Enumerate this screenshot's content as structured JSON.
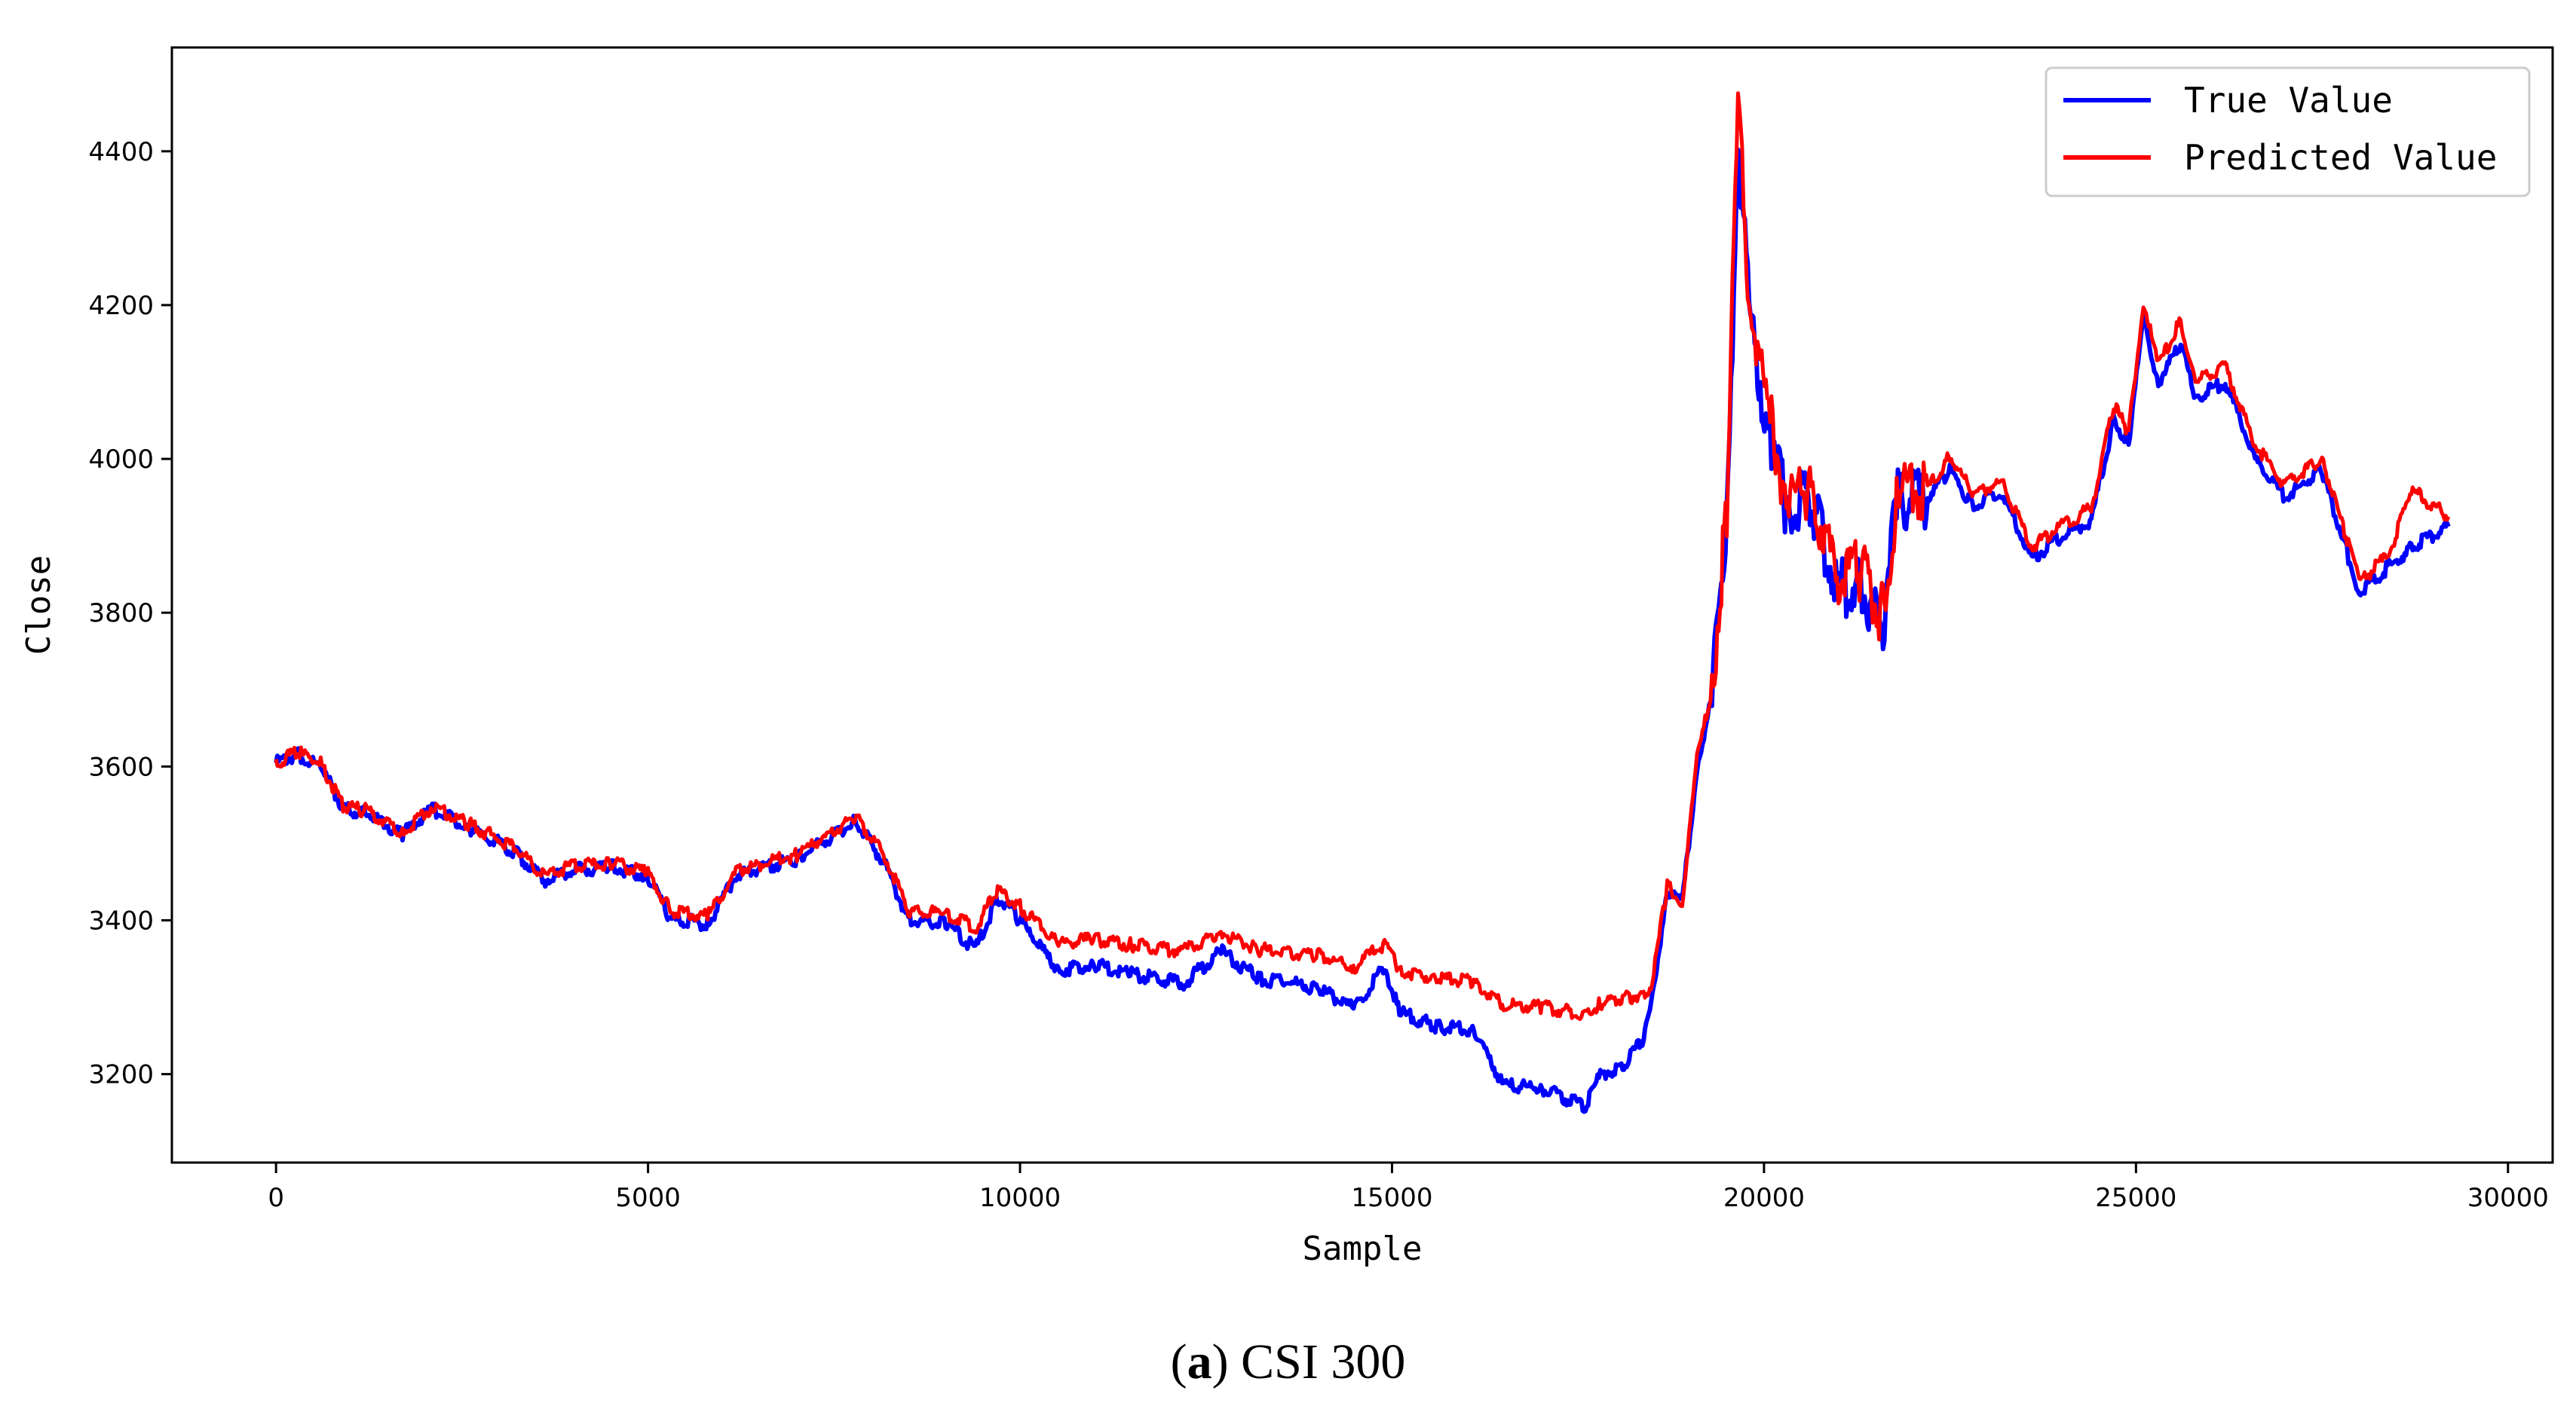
{
  "chart_data": {
    "type": "line",
    "xlabel": "Sample",
    "ylabel": "Close",
    "xlim": [
      -1400,
      30600
    ],
    "ylim": [
      3085,
      4535
    ],
    "x_ticks": [
      0,
      5000,
      10000,
      15000,
      20000,
      25000,
      30000
    ],
    "y_ticks": [
      3200,
      3400,
      3600,
      3800,
      4000,
      4200,
      4400
    ],
    "legend_position": "top-right",
    "grid": false,
    "colors": {
      "true_value": "#0000ff",
      "predicted_value": "#ff0000"
    },
    "series": [
      {
        "name": "True Value",
        "color": "#0000ff",
        "points": [
          [
            0,
            3605
          ],
          [
            300,
            3615
          ],
          [
            600,
            3600
          ],
          [
            900,
            3545
          ],
          [
            1200,
            3540
          ],
          [
            1700,
            3512
          ],
          [
            2100,
            3545
          ],
          [
            2600,
            3520
          ],
          [
            3200,
            3490
          ],
          [
            3600,
            3452
          ],
          [
            4000,
            3465
          ],
          [
            4500,
            3470
          ],
          [
            5000,
            3458
          ],
          [
            5300,
            3402
          ],
          [
            5800,
            3395
          ],
          [
            6200,
            3460
          ],
          [
            7000,
            3480
          ],
          [
            7800,
            3530
          ],
          [
            8200,
            3470
          ],
          [
            8500,
            3400
          ],
          [
            9000,
            3398
          ],
          [
            9400,
            3362
          ],
          [
            9700,
            3430
          ],
          [
            10000,
            3400
          ],
          [
            10500,
            3335
          ],
          [
            11000,
            3342
          ],
          [
            11500,
            3330
          ],
          [
            12200,
            3318
          ],
          [
            12700,
            3360
          ],
          [
            13200,
            3325
          ],
          [
            14000,
            3312
          ],
          [
            14500,
            3285
          ],
          [
            14900,
            3340
          ],
          [
            15100,
            3280
          ],
          [
            15600,
            3262
          ],
          [
            16100,
            3258
          ],
          [
            16500,
            3185
          ],
          [
            17000,
            3182
          ],
          [
            17600,
            3158
          ],
          [
            17800,
            3200
          ],
          [
            18100,
            3210
          ],
          [
            18400,
            3250
          ],
          [
            18500,
            3300
          ],
          [
            18700,
            3440
          ],
          [
            18900,
            3420
          ],
          [
            19100,
            3600
          ],
          [
            19300,
            3690
          ],
          [
            19500,
            3920
          ],
          [
            19650,
            4420
          ],
          [
            19800,
            4200
          ],
          [
            19950,
            4100
          ],
          [
            20100,
            4020
          ],
          [
            20300,
            3935
          ],
          [
            20600,
            3950
          ],
          [
            21000,
            3830
          ],
          [
            21300,
            3840
          ],
          [
            21600,
            3780
          ],
          [
            21800,
            3950
          ],
          [
            22200,
            3950
          ],
          [
            22500,
            3985
          ],
          [
            22800,
            3940
          ],
          [
            23200,
            3955
          ],
          [
            23600,
            3870
          ],
          [
            24000,
            3900
          ],
          [
            24400,
            3920
          ],
          [
            24700,
            4050
          ],
          [
            24900,
            4020
          ],
          [
            25100,
            4180
          ],
          [
            25300,
            4100
          ],
          [
            25600,
            4150
          ],
          [
            25800,
            4080
          ],
          [
            26200,
            4100
          ],
          [
            26600,
            4000
          ],
          [
            27000,
            3950
          ],
          [
            27500,
            3985
          ],
          [
            27800,
            3890
          ],
          [
            28000,
            3825
          ],
          [
            28400,
            3860
          ],
          [
            28700,
            3885
          ],
          [
            29200,
            3912
          ]
        ]
      },
      {
        "name": "Predicted Value",
        "color": "#ff0000",
        "points": [
          [
            0,
            3605
          ],
          [
            300,
            3618
          ],
          [
            600,
            3605
          ],
          [
            900,
            3548
          ],
          [
            1200,
            3543
          ],
          [
            1700,
            3515
          ],
          [
            2100,
            3548
          ],
          [
            2600,
            3525
          ],
          [
            3200,
            3495
          ],
          [
            3600,
            3458
          ],
          [
            4000,
            3470
          ],
          [
            4500,
            3475
          ],
          [
            5000,
            3462
          ],
          [
            5300,
            3412
          ],
          [
            5800,
            3405
          ],
          [
            6200,
            3465
          ],
          [
            7000,
            3485
          ],
          [
            7800,
            3535
          ],
          [
            8200,
            3480
          ],
          [
            8500,
            3412
          ],
          [
            9000,
            3410
          ],
          [
            9400,
            3390
          ],
          [
            9700,
            3440
          ],
          [
            10000,
            3418
          ],
          [
            10500,
            3370
          ],
          [
            11000,
            3375
          ],
          [
            11500,
            3368
          ],
          [
            12200,
            3360
          ],
          [
            12700,
            3385
          ],
          [
            13200,
            3362
          ],
          [
            14000,
            3355
          ],
          [
            14500,
            3340
          ],
          [
            14900,
            3370
          ],
          [
            15100,
            3335
          ],
          [
            15600,
            3325
          ],
          [
            16100,
            3320
          ],
          [
            16500,
            3290
          ],
          [
            17000,
            3288
          ],
          [
            17600,
            3278
          ],
          [
            17800,
            3292
          ],
          [
            18100,
            3298
          ],
          [
            18400,
            3305
          ],
          [
            18500,
            3320
          ],
          [
            18700,
            3445
          ],
          [
            18900,
            3425
          ],
          [
            19100,
            3610
          ],
          [
            19300,
            3700
          ],
          [
            19500,
            3935
          ],
          [
            19650,
            4460
          ],
          [
            19800,
            4220
          ],
          [
            19950,
            4120
          ],
          [
            20100,
            4040
          ],
          [
            20300,
            3950
          ],
          [
            20600,
            3965
          ],
          [
            21000,
            3845
          ],
          [
            21300,
            3855
          ],
          [
            21600,
            3795
          ],
          [
            21800,
            3965
          ],
          [
            22200,
            3960
          ],
          [
            22500,
            4005
          ],
          [
            22800,
            3955
          ],
          [
            23200,
            3970
          ],
          [
            23600,
            3885
          ],
          [
            24000,
            3915
          ],
          [
            24400,
            3935
          ],
          [
            24700,
            4070
          ],
          [
            24900,
            4035
          ],
          [
            25100,
            4205
          ],
          [
            25300,
            4120
          ],
          [
            25600,
            4180
          ],
          [
            25800,
            4100
          ],
          [
            26200,
            4120
          ],
          [
            26600,
            4020
          ],
          [
            27000,
            3965
          ],
          [
            27500,
            4000
          ],
          [
            27800,
            3905
          ],
          [
            28000,
            3840
          ],
          [
            28400,
            3875
          ],
          [
            28700,
            3960
          ],
          [
            29200,
            3925
          ]
        ]
      }
    ]
  },
  "caption": {
    "prefix": "(",
    "letter": "a",
    "rest": ") CSI 300"
  }
}
